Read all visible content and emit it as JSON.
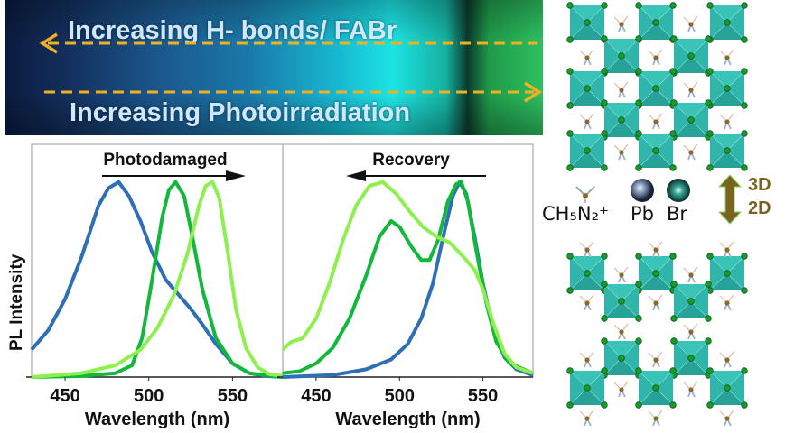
{
  "banner": {
    "top_text": "Increasing H- bonds/ FABr",
    "bottom_text": "Increasing Photoirradiation",
    "arrow_color": "#f2b021"
  },
  "colors": {
    "blue": "#2f6fb5",
    "dark_green": "#12b83a",
    "light_green": "#8ef04e"
  },
  "chart_data": [
    {
      "type": "line",
      "title": "Photodamaged",
      "annotation_arrow": "right",
      "xlabel": "Wavelength (nm)",
      "ylabel": "PL Intensity",
      "xlim": [
        430,
        580
      ],
      "ylim": [
        0,
        1.05
      ],
      "xticks": [
        450,
        500,
        550
      ],
      "series": [
        {
          "name": "blue",
          "color": "#2f6fb5",
          "points": [
            [
              430,
              0.14
            ],
            [
              440,
              0.24
            ],
            [
              450,
              0.4
            ],
            [
              460,
              0.62
            ],
            [
              470,
              0.88
            ],
            [
              476,
              0.97
            ],
            [
              482,
              1.0
            ],
            [
              488,
              0.93
            ],
            [
              495,
              0.8
            ],
            [
              502,
              0.64
            ],
            [
              510,
              0.5
            ],
            [
              518,
              0.42
            ],
            [
              525,
              0.35
            ],
            [
              532,
              0.27
            ],
            [
              540,
              0.17
            ],
            [
              550,
              0.07
            ],
            [
              560,
              0.02
            ],
            [
              570,
              0.005
            ],
            [
              580,
              0
            ]
          ]
        },
        {
          "name": "dark_green",
          "color": "#12b83a",
          "points": [
            [
              430,
              0
            ],
            [
              460,
              0.005
            ],
            [
              480,
              0.02
            ],
            [
              490,
              0.06
            ],
            [
              496,
              0.2
            ],
            [
              502,
              0.5
            ],
            [
              508,
              0.82
            ],
            [
              512,
              0.96
            ],
            [
              516,
              1.0
            ],
            [
              521,
              0.93
            ],
            [
              526,
              0.72
            ],
            [
              532,
              0.45
            ],
            [
              540,
              0.2
            ],
            [
              550,
              0.07
            ],
            [
              560,
              0.02
            ],
            [
              580,
              0
            ]
          ]
        },
        {
          "name": "light_green",
          "color": "#8ef04e",
          "points": [
            [
              430,
              0
            ],
            [
              460,
              0.02
            ],
            [
              480,
              0.06
            ],
            [
              495,
              0.14
            ],
            [
              505,
              0.25
            ],
            [
              515,
              0.42
            ],
            [
              523,
              0.63
            ],
            [
              530,
              0.88
            ],
            [
              534,
              0.98
            ],
            [
              538,
              1.0
            ],
            [
              542,
              0.92
            ],
            [
              547,
              0.65
            ],
            [
              552,
              0.35
            ],
            [
              558,
              0.15
            ],
            [
              565,
              0.05
            ],
            [
              572,
              0.015
            ],
            [
              580,
              0.005
            ]
          ]
        }
      ]
    },
    {
      "type": "line",
      "title": "Recovery",
      "annotation_arrow": "left",
      "xlabel": "Wavelength (nm)",
      "xlim": [
        430,
        580
      ],
      "ylim": [
        0,
        1.05
      ],
      "xticks": [
        450,
        500,
        550
      ],
      "series": [
        {
          "name": "blue",
          "color": "#2f6fb5",
          "points": [
            [
              430,
              0
            ],
            [
              460,
              0.01
            ],
            [
              480,
              0.04
            ],
            [
              495,
              0.09
            ],
            [
              505,
              0.17
            ],
            [
              513,
              0.3
            ],
            [
              520,
              0.48
            ],
            [
              527,
              0.75
            ],
            [
              532,
              0.93
            ],
            [
              536,
              1.0
            ],
            [
              540,
              0.94
            ],
            [
              545,
              0.72
            ],
            [
              550,
              0.48
            ],
            [
              556,
              0.25
            ],
            [
              563,
              0.1
            ],
            [
              570,
              0.04
            ],
            [
              580,
              0.01
            ]
          ]
        },
        {
          "name": "dark_green",
          "color": "#12b83a",
          "points": [
            [
              430,
              0.02
            ],
            [
              440,
              0.03
            ],
            [
              450,
              0.07
            ],
            [
              460,
              0.15
            ],
            [
              470,
              0.3
            ],
            [
              480,
              0.52
            ],
            [
              488,
              0.72
            ],
            [
              495,
              0.8
            ],
            [
              500,
              0.77
            ],
            [
              507,
              0.67
            ],
            [
              513,
              0.6
            ],
            [
              518,
              0.6
            ],
            [
              523,
              0.7
            ],
            [
              529,
              0.9
            ],
            [
              534,
              0.99
            ],
            [
              537,
              1.0
            ],
            [
              541,
              0.9
            ],
            [
              546,
              0.65
            ],
            [
              552,
              0.38
            ],
            [
              558,
              0.18
            ],
            [
              566,
              0.07
            ],
            [
              580,
              0.02
            ]
          ]
        },
        {
          "name": "light_green",
          "color": "#8ef04e",
          "points": [
            [
              430,
              0.14
            ],
            [
              435,
              0.18
            ],
            [
              442,
              0.2
            ],
            [
              450,
              0.3
            ],
            [
              458,
              0.48
            ],
            [
              466,
              0.7
            ],
            [
              474,
              0.88
            ],
            [
              482,
              0.98
            ],
            [
              490,
              1.0
            ],
            [
              498,
              0.94
            ],
            [
              506,
              0.85
            ],
            [
              514,
              0.77
            ],
            [
              522,
              0.72
            ],
            [
              530,
              0.69
            ],
            [
              538,
              0.62
            ],
            [
              545,
              0.55
            ],
            [
              550,
              0.45
            ],
            [
              556,
              0.28
            ],
            [
              563,
              0.12
            ],
            [
              570,
              0.05
            ],
            [
              580,
              0.02
            ]
          ]
        }
      ]
    }
  ],
  "structure": {
    "legend": {
      "cation": "CH₅N₂⁺",
      "lead": "Pb",
      "bromide": "Br"
    },
    "transition": {
      "top": "3D",
      "bottom": "2D"
    },
    "octahedron_color": "#2fb5aa",
    "atom_color": "#1a9a2a"
  }
}
